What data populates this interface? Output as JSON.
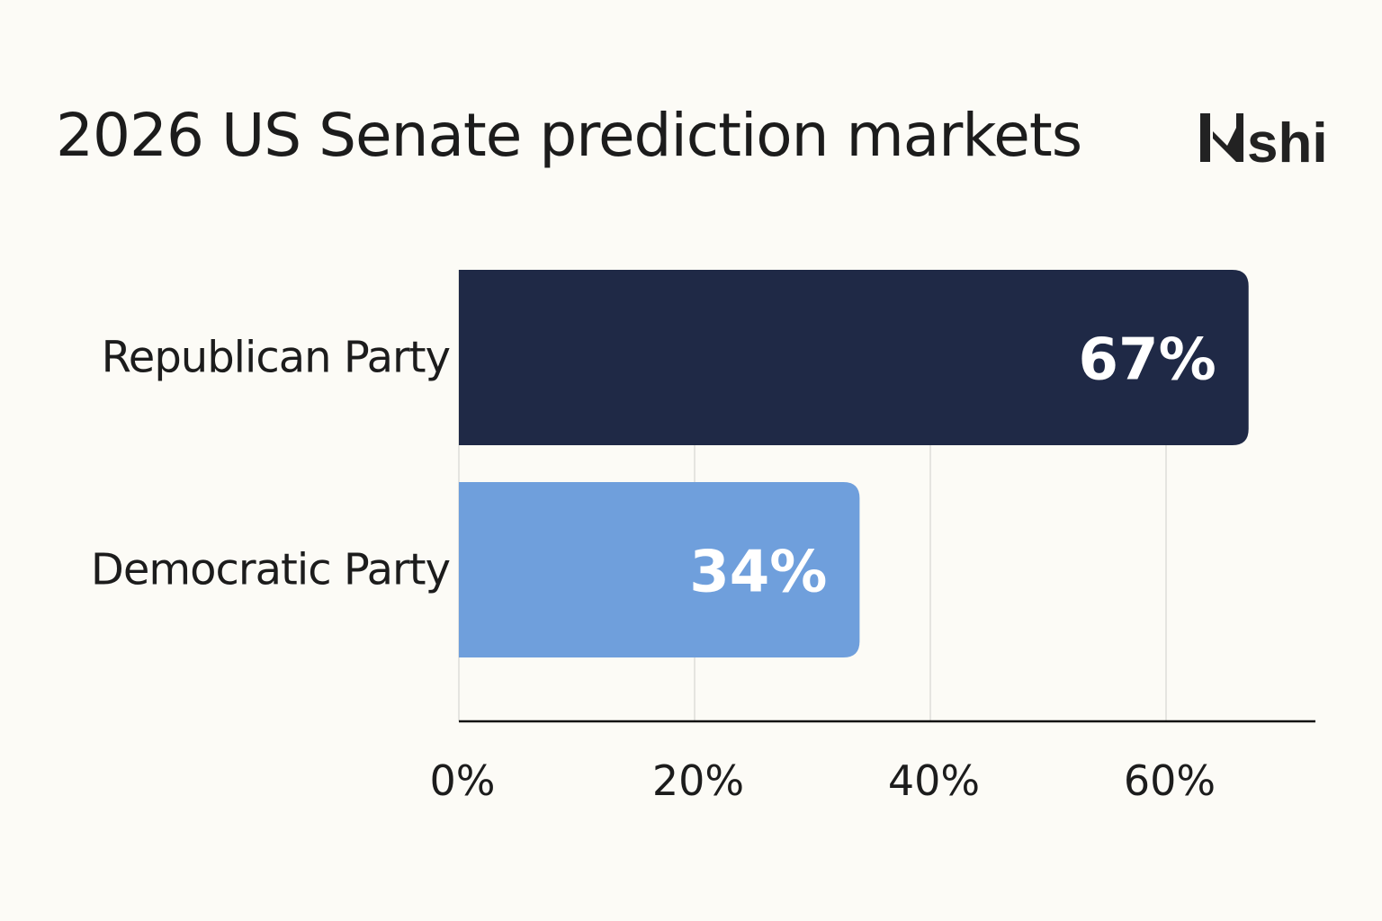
{
  "chart_data": {
    "type": "bar",
    "orientation": "horizontal",
    "title": "2026 US Senate prediction markets",
    "categories": [
      "Republican Party",
      "Democratic Party"
    ],
    "values": [
      67,
      34
    ],
    "data_labels": [
      "67%",
      "34%"
    ],
    "colors": [
      "#1f2946",
      "#6f9fdc"
    ],
    "xlim": [
      0,
      70
    ],
    "xticks": [
      0,
      20,
      40,
      60
    ],
    "xtick_labels": [
      "0%",
      "20%",
      "40%",
      "60%"
    ],
    "grid": true,
    "xlabel": "",
    "ylabel": ""
  },
  "logo": {
    "text": "Kalshi",
    "color": "#222222"
  },
  "background": "#fcfbf6"
}
